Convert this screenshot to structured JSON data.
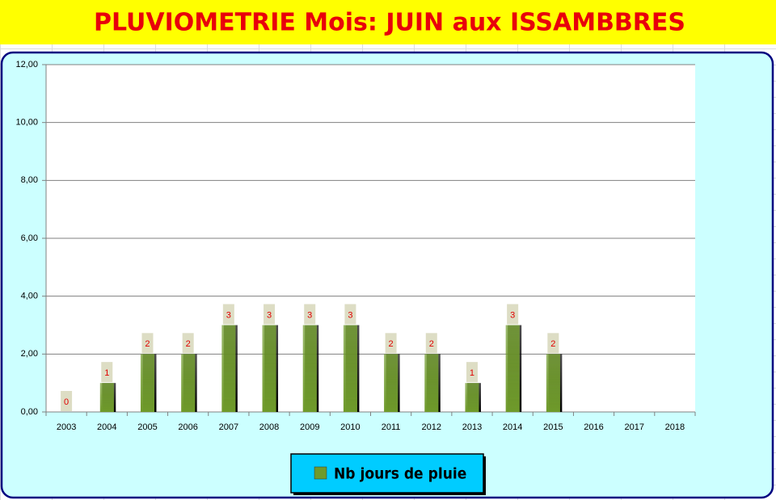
{
  "chart_data": {
    "type": "bar",
    "title": "PLUVIOMETRIE Mois: JUIN aux ISSAMBBRES",
    "categories": [
      "2003",
      "2004",
      "2005",
      "2006",
      "2007",
      "2008",
      "2009",
      "2010",
      "2011",
      "2012",
      "2013",
      "2014",
      "2015",
      "2016",
      "2017",
      "2018"
    ],
    "series": [
      {
        "name": "Nb jours de pluie",
        "color": "#6f9a2c",
        "values": [
          0,
          1,
          2,
          2,
          3,
          3,
          3,
          3,
          2,
          2,
          1,
          3,
          2,
          null,
          null,
          null
        ]
      }
    ],
    "ylim": [
      0,
      12
    ],
    "yticks": [
      {
        "value": 0,
        "label": "0,00"
      },
      {
        "value": 2,
        "label": "2,00"
      },
      {
        "value": 4,
        "label": "4,00"
      },
      {
        "value": 6,
        "label": "6,00"
      },
      {
        "value": 8,
        "label": "8,00"
      },
      {
        "value": 10,
        "label": "10,00"
      },
      {
        "value": 12,
        "label": "12,00"
      }
    ],
    "grid": true,
    "legend": "bottom"
  }
}
